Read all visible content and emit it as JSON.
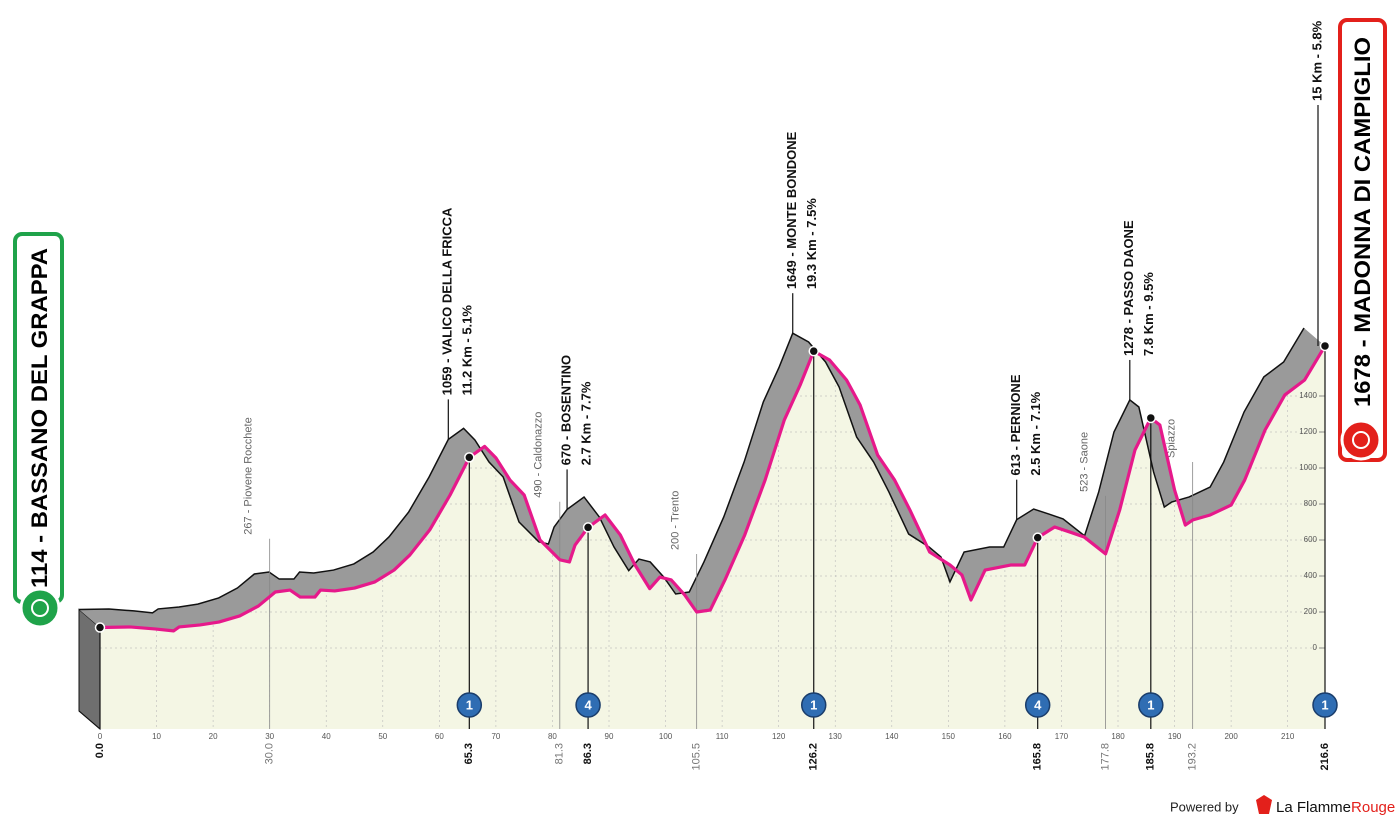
{
  "chart_data": {
    "type": "area",
    "color": "#e6198b",
    "band_color": "#9a9a9a",
    "fill_color": "#f4f6e4",
    "xlim": [
      0,
      216.6
    ],
    "ylim": [
      -450,
      1850
    ],
    "xticks": [
      0,
      10,
      20,
      30,
      40,
      50,
      60,
      70,
      80,
      90,
      100,
      110,
      120,
      130,
      140,
      150,
      160,
      170,
      180,
      190,
      200,
      210
    ],
    "yticks": [
      0,
      200,
      400,
      600,
      800,
      1000,
      1200,
      1400
    ],
    "grid": true,
    "x": [
      0,
      5.3,
      9.7,
      13,
      14,
      17.7,
      21,
      24.7,
      28,
      31,
      33.6,
      35.4,
      38,
      39,
      41.5,
      45,
      48.6,
      52,
      54.8,
      58.3,
      61.9,
      65.3,
      68,
      70,
      72.5,
      75,
      77.8,
      81.3,
      83,
      84,
      86.3,
      89.3,
      92,
      94.6,
      97.2,
      99,
      101,
      103.4,
      105.5,
      107.9,
      110.5,
      114,
      117.6,
      121,
      123.8,
      126.2,
      129,
      132,
      134.4,
      137.5,
      140.5,
      143.2,
      146.7,
      150.3,
      152.4,
      154,
      156.5,
      161,
      163.5,
      165.8,
      168.8,
      171.5,
      174,
      177.8,
      180.3,
      183,
      185.8,
      187.4,
      190,
      191.9,
      193.2,
      196.3,
      200,
      202.4,
      206,
      209.5,
      213,
      216.6
    ],
    "values": [
      114,
      117,
      106,
      95,
      117,
      128,
      144,
      178,
      233,
      311,
      322,
      283,
      283,
      322,
      317,
      333,
      367,
      433,
      517,
      656,
      850,
      1059,
      1120,
      1056,
      933,
      850,
      600,
      490,
      478,
      572,
      670,
      739,
      628,
      461,
      330,
      394,
      378,
      294,
      200,
      211,
      378,
      628,
      933,
      1267,
      1461,
      1649,
      1600,
      1489,
      1350,
      1072,
      933,
      767,
      533,
      461,
      406,
      267,
      433,
      461,
      461,
      613,
      672,
      644,
      617,
      523,
      767,
      1100,
      1278,
      1239,
      878,
      683,
      711,
      739,
      794,
      933,
      1211,
      1406,
      1489,
      1678
    ],
    "waypoints": [
      {
        "km": 0,
        "km_label": "0.0",
        "major": true
      },
      {
        "km": 30,
        "km_label": "30.0",
        "major": false,
        "name": [
          "267 - Piovene Rocchete"
        ]
      },
      {
        "km": 65.3,
        "km_label": "65.3",
        "major": true,
        "category": 1,
        "name": [
          "1059 - VALICO DELLA FRICCA",
          "11.2 Km - 5.1%"
        ]
      },
      {
        "km": 81.3,
        "km_label": "81.3",
        "major": false,
        "name": [
          "490 - Caldonazzo"
        ]
      },
      {
        "km": 86.3,
        "km_label": "86.3",
        "major": true,
        "category": 4,
        "name": [
          "670 - BOSENTINO",
          "2.7 Km - 7.7%"
        ]
      },
      {
        "km": 105.5,
        "km_label": "105.5",
        "major": false,
        "name": [
          "200 - Trento"
        ]
      },
      {
        "km": 126.2,
        "km_label": "126.2",
        "major": true,
        "category": 1,
        "name": [
          "1649 - MONTE BONDONE",
          "19.3 Km - 7.5%"
        ]
      },
      {
        "km": 165.8,
        "km_label": "165.8",
        "major": true,
        "category": 4,
        "name": [
          "613 - PERNIONE",
          "2.5 Km - 7.1%"
        ]
      },
      {
        "km": 177.8,
        "km_label": "177.8",
        "major": false,
        "name": [
          "523 - Saone"
        ]
      },
      {
        "km": 185.8,
        "km_label": "185.8",
        "major": true,
        "category": 1,
        "name": [
          "1278 - PASSO DAONE",
          "7.8 Km - 9.5%"
        ]
      },
      {
        "km": 193.2,
        "km_label": "193.2",
        "major": false,
        "name": [
          "Spiazzo"
        ]
      },
      {
        "km": 216.6,
        "km_label": "216.6",
        "major": true,
        "category": 1
      }
    ],
    "start": "114 - BASSANO DEL GRAPPA",
    "finish": "1678 - MADONNA DI CAMPIGLIO",
    "finish_climb": "15 Km - 5.8%"
  },
  "footer": {
    "powered": "Powered by",
    "brand": "La Flamme",
    "brand2": "Rouge"
  }
}
